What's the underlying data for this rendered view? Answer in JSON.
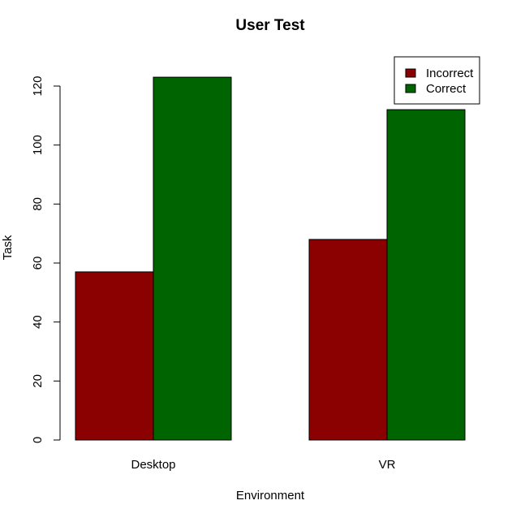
{
  "chart_data": {
    "type": "bar",
    "title": "User Test",
    "xlabel": "Environment",
    "ylabel": "Task",
    "categories": [
      "Desktop",
      "VR"
    ],
    "series": [
      {
        "name": "Incorrect",
        "values": [
          57,
          68
        ],
        "color": "#8B0000"
      },
      {
        "name": "Correct",
        "values": [
          123,
          112
        ],
        "color": "#006400"
      }
    ],
    "ylim": [
      0,
      120
    ],
    "yticks": [
      "0",
      "20",
      "40",
      "60",
      "80",
      "100",
      "120"
    ],
    "grid": false,
    "legend": "top-right",
    "bar_mode": "grouped"
  }
}
